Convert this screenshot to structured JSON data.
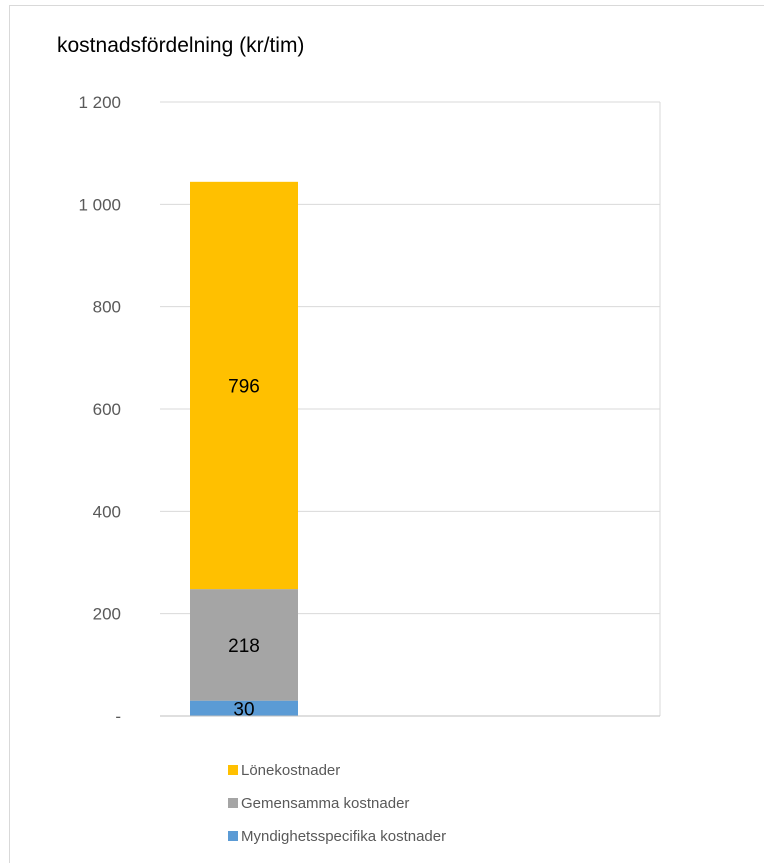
{
  "chart_data": {
    "type": "bar",
    "stacked": true,
    "title": "kostnadsfördelning (kr/tim)",
    "xlabel": "",
    "ylabel": "",
    "categories": [
      ""
    ],
    "ylim": [
      0,
      1200
    ],
    "y_ticks": [
      {
        "value": 0,
        "label": "-"
      },
      {
        "value": 200,
        "label": "200"
      },
      {
        "value": 400,
        "label": "400"
      },
      {
        "value": 600,
        "label": "600"
      },
      {
        "value": 800,
        "label": "800"
      },
      {
        "value": 1000,
        "label": "1 000"
      },
      {
        "value": 1200,
        "label": "1 200"
      }
    ],
    "grid": true,
    "legend_position": "bottom",
    "series": [
      {
        "name": "Myndighetsspecifika kostnader",
        "values": [
          30
        ],
        "label": "30",
        "color": "#5b9bd5"
      },
      {
        "name": "Gemensamma kostnader",
        "values": [
          218
        ],
        "label": "218",
        "color": "#a5a5a5"
      },
      {
        "name": "Lönekostnader",
        "values": [
          796
        ],
        "label": "796",
        "color": "#ffc000"
      }
    ],
    "legend_order": [
      "Lönekostnader",
      "Gemensamma kostnader",
      "Myndighetsspecifika kostnader"
    ]
  },
  "colors": {
    "grid": "#d9d9d9",
    "axis": "#bfbfbf",
    "tick_text": "#595959"
  }
}
